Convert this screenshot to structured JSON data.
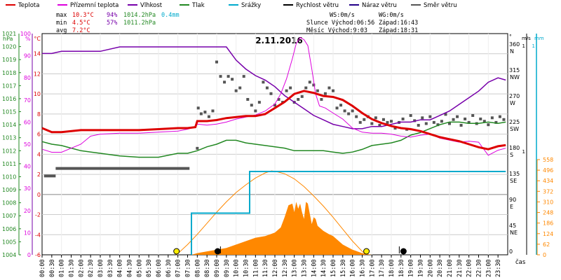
{
  "colors": {
    "temperature": "#dd0000",
    "feels_like": "#dd00dd",
    "humidity": "#7700aa",
    "pressure": "#228822",
    "precipitation": "#00aacc",
    "wind_speed": "#000000",
    "wind_gust": "#220088",
    "wind_dir": "#555555",
    "solar": "#ff8800",
    "grid": "#cccccc",
    "zero_line": "#888888"
  },
  "legend": {
    "items": [
      {
        "key": "temperature",
        "label": "Teplota"
      },
      {
        "key": "feels_like",
        "label": "Přízemní teplota"
      },
      {
        "key": "humidity",
        "label": "Vlhkost"
      },
      {
        "key": "pressure",
        "label": "Tlak"
      },
      {
        "key": "precipitation",
        "label": "Srážky"
      },
      {
        "key": "wind_speed",
        "label": "Rychlost větru"
      },
      {
        "key": "wind_gust",
        "label": "Náraz větru"
      },
      {
        "key": "wind_dir",
        "label": "Směr větru"
      }
    ]
  },
  "stats": {
    "max_label": "max",
    "min_label": "min",
    "avg_label": "avg",
    "max_temp": "10.3°C",
    "max_hum": "94%",
    "max_press": "1014.2hPa",
    "max_rain": "0.4mm",
    "min_temp": "4.5°C",
    "min_hum": "57%",
    "min_press": "1011.2hPa",
    "avg_temp": "7.2°C"
  },
  "wind_info": {
    "ws": "WS:0m/s",
    "wg": "WG:0m/s",
    "sun_line": "Slunce Východ:06:56",
    "sun_set": "Západ:16:43",
    "moon_line": "Měsíc  Východ:9:03",
    "moon_set": "Západ:18:31"
  },
  "chart_data": {
    "type": "line",
    "title": "2.11.2016",
    "xlabel": "čas",
    "x_ticks": [
      "00:00",
      "00:30",
      "01:00",
      "01:30",
      "02:00",
      "02:30",
      "03:00",
      "03:30",
      "04:00",
      "04:30",
      "05:00",
      "05:30",
      "06:00",
      "06:30",
      "07:00",
      "07:30",
      "08:00",
      "08:30",
      "09:00",
      "09:30",
      "10:00",
      "10:30",
      "11:00",
      "11:30",
      "12:00",
      "12:30",
      "13:00",
      "13:30",
      "14:00",
      "14:30",
      "15:00",
      "15:30",
      "16:00",
      "16:30",
      "17:00",
      "17:30",
      "18:00",
      "18:30",
      "19:00",
      "19:30",
      "20:00",
      "20:30",
      "21:00",
      "21:30",
      "22:00",
      "22:30",
      "23:00",
      "23:30"
    ],
    "axes": {
      "hpa": {
        "unit": "hPa",
        "range": [
          1004,
          1021
        ],
        "ticks": [
          1004,
          1005,
          1006,
          1007,
          1008,
          1009,
          1010,
          1011,
          1012,
          1013,
          1014,
          1015,
          1016,
          1017,
          1018,
          1019,
          1020,
          1021
        ]
      },
      "humidity": {
        "unit": "%",
        "range": [
          0,
          100
        ],
        "ticks": [
          0,
          10,
          20,
          30,
          40,
          50,
          60,
          70,
          80,
          90,
          100
        ]
      },
      "temperature": {
        "unit": "°C",
        "range": [
          -6,
          16
        ],
        "ticks": [
          -6,
          -4,
          -2,
          0,
          2,
          4,
          6,
          8,
          10,
          12,
          14
        ]
      },
      "wind_dir": {
        "unit": "°",
        "ticks": [
          {
            "v": 0,
            "t": "0"
          },
          {
            "v": 45,
            "t": "45",
            "c": "NE"
          },
          {
            "v": 90,
            "t": "90",
            "c": "E"
          },
          {
            "v": 135,
            "t": "135",
            "c": "SE"
          },
          {
            "v": 180,
            "t": "180",
            "c": "S"
          },
          {
            "v": 225,
            "t": "225",
            "c": "SW"
          },
          {
            "v": 270,
            "t": "270",
            "c": "W"
          },
          {
            "v": 315,
            "t": "315",
            "c": "NW"
          },
          {
            "v": 360,
            "t": "360",
            "c": "N"
          }
        ]
      },
      "wind_speed": {
        "unit": "m/s",
        "top_tick": "1",
        "mid_tick": "1"
      },
      "rain": {
        "unit": "mm",
        "top_tick": "1"
      },
      "solar": {
        "unit": "W/m²",
        "ticks": [
          0,
          62,
          124,
          186,
          248,
          310,
          372,
          434,
          496,
          558
        ]
      }
    },
    "series": [
      {
        "key": "temperature",
        "name": "Teplota",
        "unit": "°C",
        "x": [
          0,
          0.5,
          1,
          2,
          3,
          4,
          5,
          6,
          7,
          7.5,
          7.9,
          8,
          8.5,
          9,
          9.5,
          10,
          10.5,
          11,
          11.5,
          12,
          12.5,
          13,
          13.5,
          14,
          14.5,
          15,
          15.5,
          16,
          16.5,
          17,
          17.5,
          18,
          18.5,
          19,
          19.5,
          20,
          20.5,
          21,
          21.5,
          22,
          22.5,
          23,
          23.5,
          23.9
        ],
        "y": [
          6.6,
          6.2,
          6.2,
          6.4,
          6.4,
          6.4,
          6.4,
          6.5,
          6.6,
          6.6,
          6.7,
          7.3,
          7.3,
          7.4,
          7.6,
          7.7,
          7.8,
          7.8,
          8.0,
          8.6,
          9.2,
          10.0,
          10.3,
          10.1,
          9.8,
          9.7,
          9.4,
          8.8,
          8.1,
          7.5,
          7.1,
          6.8,
          6.6,
          6.5,
          6.3,
          6.0,
          5.7,
          5.5,
          5.3,
          5.0,
          4.7,
          4.5,
          4.8,
          4.9
        ]
      },
      {
        "key": "feels_like",
        "name": "Přízemní teplota",
        "unit": "°C",
        "x": [
          0,
          0.5,
          1,
          2,
          2.5,
          3,
          4,
          5,
          6,
          7,
          7.5,
          7.9,
          8,
          8.5,
          9,
          9.5,
          10,
          10.5,
          11,
          11.5,
          12,
          12.3,
          12.6,
          12.9,
          13.1,
          13.3,
          13.5,
          13.7,
          13.9,
          14.1,
          14.3,
          14.6,
          15,
          15.5,
          16,
          16.5,
          17,
          17.5,
          18,
          18.5,
          19,
          19.5,
          20,
          20.5,
          21,
          21.5,
          22,
          22.5,
          23,
          23.5,
          23.9
        ],
        "y": [
          4.5,
          4.2,
          4.2,
          5.0,
          5.8,
          6.0,
          6.1,
          6.1,
          6.2,
          6.3,
          6.5,
          6.7,
          7.0,
          6.9,
          7.0,
          7.2,
          7.5,
          7.7,
          7.9,
          8.3,
          9.0,
          10.0,
          11.5,
          13.5,
          15.0,
          15.6,
          15.4,
          14.8,
          12.5,
          10.0,
          8.8,
          8.6,
          8.1,
          7.5,
          6.6,
          6.2,
          6.1,
          6.1,
          6.0,
          5.8,
          5.7,
          5.9,
          6.0,
          5.6,
          5.4,
          5.2,
          5.3,
          5.2,
          3.9,
          4.4,
          4.6
        ]
      },
      {
        "key": "humidity",
        "name": "Vlhkost",
        "unit": "%",
        "x": [
          0,
          0.5,
          1,
          2,
          3,
          4,
          5,
          6,
          7,
          7.5,
          7.9,
          8,
          9,
          9.5,
          10,
          10.5,
          11,
          11.5,
          12,
          12.5,
          13,
          13.5,
          14,
          14.5,
          15,
          15.5,
          16,
          16.5,
          17,
          17.5,
          18,
          18.5,
          19,
          19.5,
          20,
          20.5,
          21,
          21.5,
          22,
          22.5,
          23,
          23.5,
          23.9
        ],
        "y": [
          91,
          91,
          92,
          92,
          92,
          94,
          94,
          94,
          94,
          94,
          94,
          94,
          94,
          94,
          88,
          84,
          81,
          79,
          76,
          72,
          69,
          66,
          63,
          61,
          59,
          58,
          57,
          57,
          58,
          58,
          59,
          60,
          60,
          61,
          61,
          63,
          65,
          68,
          71,
          74,
          78,
          80,
          79
        ]
      },
      {
        "key": "pressure",
        "name": "Tlak",
        "unit": "hPa",
        "x": [
          0,
          0.5,
          1,
          1.5,
          2,
          3,
          4,
          5,
          6,
          7,
          7.5,
          8,
          8.5,
          9,
          9.5,
          10,
          10.5,
          11,
          11.5,
          12,
          12.5,
          13,
          13.5,
          14,
          14.5,
          15,
          15.5,
          16,
          16.5,
          17,
          17.5,
          18,
          18.5,
          19,
          19.5,
          20,
          20.5,
          21,
          21.5,
          22,
          22.5,
          23,
          23.5,
          23.9
        ],
        "y": [
          1012.7,
          1012.5,
          1012.4,
          1012.2,
          1012.0,
          1011.8,
          1011.6,
          1011.5,
          1011.5,
          1011.8,
          1011.8,
          1012.0,
          1012.3,
          1012.5,
          1012.8,
          1012.8,
          1012.6,
          1012.5,
          1012.4,
          1012.3,
          1012.2,
          1012.0,
          1012.0,
          1012.0,
          1012.0,
          1011.9,
          1011.8,
          1011.9,
          1012.1,
          1012.4,
          1012.5,
          1012.6,
          1012.8,
          1013.2,
          1013.4,
          1013.7,
          1014.0,
          1014.2,
          1014.2,
          1014.1,
          1014.1,
          1014.2,
          1014.1,
          1014.2
        ]
      },
      {
        "key": "precipitation",
        "name": "Srážky",
        "unit": "mm",
        "x": [
          7.7,
          7.7,
          9.3,
          9.3,
          10.7,
          10.7,
          23.9
        ],
        "y": [
          0,
          0.2,
          0.2,
          0.2,
          0.2,
          0.4,
          0.4
        ]
      },
      {
        "key": "solar",
        "name": "",
        "unit": "W/m²",
        "x": [
          7.7,
          8,
          8.5,
          9,
          9.5,
          10,
          10.5,
          11,
          11.5,
          12,
          12.3,
          12.5,
          12.7,
          12.9,
          13,
          13.1,
          13.2,
          13.3,
          13.4,
          13.5,
          13.6,
          13.7,
          13.8,
          13.9,
          14,
          14.1,
          14.2,
          14.3,
          14.5,
          14.8,
          15,
          15.5,
          16,
          16.5,
          17
        ],
        "y": [
          0,
          10,
          20,
          30,
          40,
          60,
          80,
          100,
          110,
          130,
          160,
          220,
          290,
          300,
          250,
          310,
          270,
          300,
          250,
          210,
          310,
          300,
          240,
          180,
          220,
          210,
          170,
          160,
          140,
          120,
          110,
          60,
          30,
          10,
          0
        ]
      },
      {
        "key": "sun_curve",
        "name": "",
        "unit": "W/m²",
        "x": [
          6.93,
          7.5,
          8,
          8.5,
          9,
          9.5,
          10,
          10.5,
          11,
          11.5,
          11.82,
          12,
          12.5,
          13,
          13.5,
          14,
          14.5,
          15,
          15.5,
          16,
          16.5,
          16.72
        ],
        "y": [
          0,
          60,
          120,
          185,
          250,
          310,
          365,
          410,
          450,
          480,
          492,
          490,
          475,
          445,
          400,
          345,
          285,
          220,
          150,
          80,
          20,
          0
        ]
      },
      {
        "key": "wind_dir",
        "name": "Směr větru",
        "unit": "°",
        "x": [
          0.1,
          0.3,
          0.5,
          1,
          1.5,
          2,
          2.5,
          3,
          3.5,
          4,
          4.5,
          5,
          5.5,
          6,
          6.5,
          7,
          7.4,
          8.0,
          8.05,
          8.2,
          8.4,
          8.6,
          8.8,
          9.0,
          9.2,
          9.4,
          9.6,
          9.8,
          10.0,
          10.2,
          10.4,
          10.6,
          10.8,
          11.0,
          11.2,
          11.4,
          11.6,
          11.8,
          12.0,
          12.2,
          12.4,
          12.6,
          12.8,
          13.0,
          13.2,
          13.4,
          13.6,
          13.8,
          14.0,
          14.2,
          14.4,
          14.6,
          14.8,
          15.0,
          15.2,
          15.4,
          15.6,
          15.8,
          16.0,
          16.2,
          16.4,
          16.6,
          16.8,
          17.0,
          17.2,
          17.4,
          17.6,
          17.8,
          18.0,
          18.2,
          18.4,
          18.6,
          18.8,
          19.0,
          19.2,
          19.4,
          19.6,
          19.8,
          20.0,
          20.2,
          20.4,
          20.6,
          20.8,
          21.0,
          21.2,
          21.4,
          21.6,
          21.8,
          22.0,
          22.2,
          22.4,
          22.6,
          22.8,
          23.0,
          23.2,
          23.4,
          23.6,
          23.8
        ],
        "y": [
          137,
          137,
          137,
          150,
          150,
          150,
          150,
          150,
          150,
          150,
          150,
          150,
          150,
          150,
          150,
          150,
          150,
          185,
          255,
          245,
          248,
          240,
          250,
          335,
          310,
          300,
          310,
          305,
          285,
          290,
          310,
          270,
          260,
          250,
          265,
          300,
          290,
          280,
          260,
          270,
          265,
          285,
          290,
          265,
          270,
          275,
          290,
          300,
          295,
          285,
          270,
          280,
          290,
          285,
          255,
          260,
          250,
          245,
          250,
          240,
          230,
          235,
          240,
          228,
          238,
          225,
          235,
          230,
          232,
          220,
          230,
          236,
          218,
          242,
          233,
          225,
          238,
          228,
          240,
          230,
          226,
          232,
          244,
          228,
          235,
          240,
          225,
          236,
          230,
          242,
          228,
          236,
          232,
          226,
          238,
          230,
          240,
          235
        ]
      }
    ],
    "markers": {
      "sunrise_x": 6.93,
      "sunset_x": 16.72,
      "moonrise_x": 9.05,
      "moonset_x": 18.52
    }
  }
}
